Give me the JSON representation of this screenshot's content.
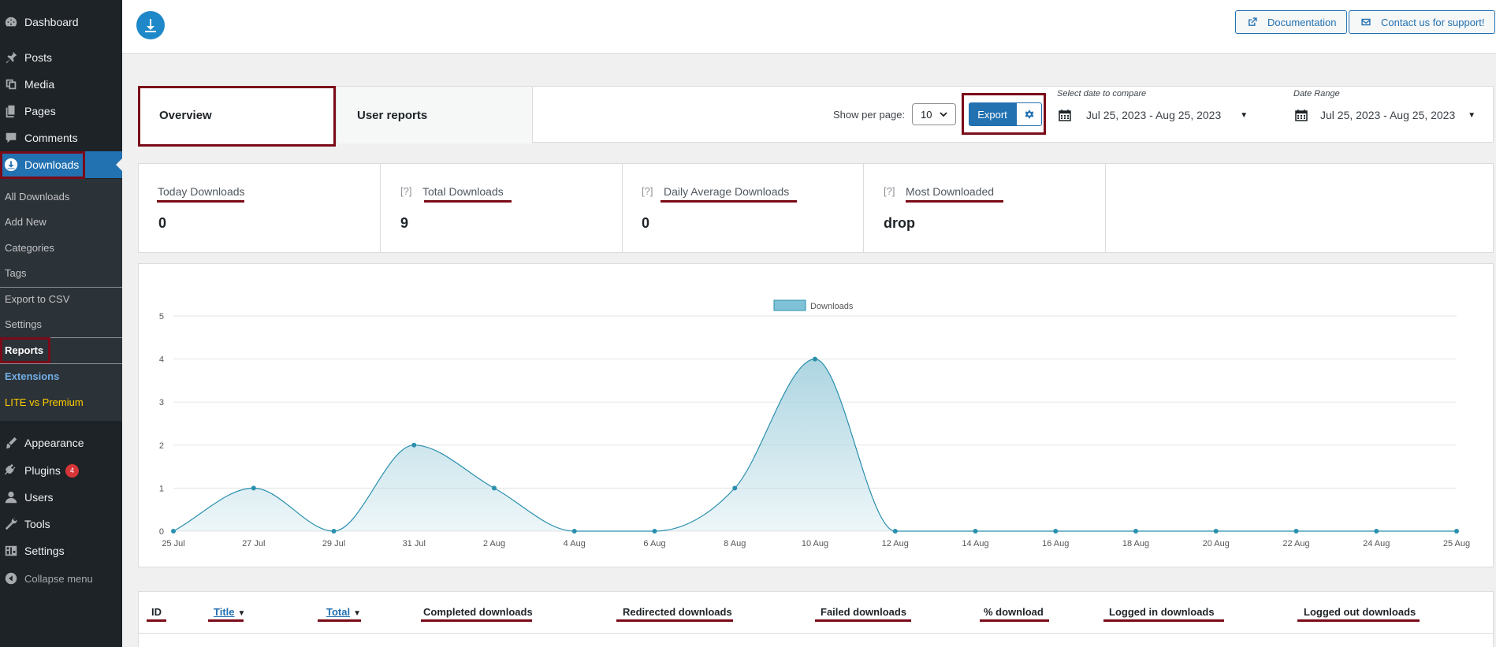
{
  "sidebar": {
    "dashboard": "Dashboard",
    "posts": "Posts",
    "media": "Media",
    "pages": "Pages",
    "comments": "Comments",
    "downloads": "Downloads",
    "submenu": {
      "all_downloads": "All Downloads",
      "add_new": "Add New",
      "categories": "Categories",
      "tags": "Tags",
      "export_csv": "Export to CSV",
      "settings": "Settings",
      "reports": "Reports",
      "extensions": "Extensions",
      "lite_vs_premium": "LITE vs Premium"
    },
    "appearance": "Appearance",
    "plugins": "Plugins",
    "plugins_badge": "4",
    "users": "Users",
    "tools": "Tools",
    "settings": "Settings",
    "collapse": "Collapse menu"
  },
  "header": {
    "documentation": "Documentation",
    "contact": "Contact us for support!"
  },
  "controls": {
    "tabs": [
      "Overview",
      "User reports"
    ],
    "show_per_page_label": "Show per page:",
    "per_page_value": "10",
    "export_label": "Export",
    "compare_caption": "Select date to compare",
    "compare_range": "Jul 25, 2023 - Aug 25, 2023",
    "date_range_caption": "Date Range",
    "date_range": "Jul 25, 2023 - Aug 25, 2023"
  },
  "stats": [
    {
      "title": "Today Downloads",
      "help": "",
      "value": "0"
    },
    {
      "title": "Total Downloads",
      "help": "[?]",
      "value": "9"
    },
    {
      "title": "Daily Average Downloads",
      "help": "[?]",
      "value": "0"
    },
    {
      "title": "Most Downloaded",
      "help": "[?]",
      "value": "drop"
    }
  ],
  "chart_data": {
    "type": "area",
    "title": "",
    "xlabel": "",
    "ylabel": "",
    "ylim": [
      0,
      5
    ],
    "yticks": [
      "0",
      "1",
      "2",
      "3",
      "4",
      "5"
    ],
    "legend": "top-center",
    "grid": true,
    "categories": [
      "25 Jul",
      "27 Jul",
      "29 Jul",
      "31 Jul",
      "2 Aug",
      "4 Aug",
      "6 Aug",
      "8 Aug",
      "10 Aug",
      "12 Aug",
      "14 Aug",
      "16 Aug",
      "18 Aug",
      "20 Aug",
      "22 Aug",
      "24 Aug",
      "25 Aug"
    ],
    "series": [
      {
        "name": "Downloads",
        "values": [
          0,
          1,
          0,
          2,
          1,
          0,
          0,
          1,
          4,
          0,
          0,
          0,
          0,
          0,
          0,
          0,
          0
        ],
        "color": "#2a90ad",
        "fill": "#a9d3e0"
      }
    ]
  },
  "table": {
    "columns": [
      {
        "label": "ID",
        "sortable": false
      },
      {
        "label": "Title",
        "sortable": true
      },
      {
        "label": "Total",
        "sortable": true
      },
      {
        "label": "Completed downloads",
        "sortable": false
      },
      {
        "label": "Redirected downloads",
        "sortable": false
      },
      {
        "label": "Failed downloads",
        "sortable": false
      },
      {
        "label": "% download",
        "sortable": false
      },
      {
        "label": "Logged in downloads",
        "sortable": false
      },
      {
        "label": "Logged out downloads",
        "sortable": false
      }
    ]
  },
  "colors": {
    "accent": "#2271b1",
    "sidebar_bg": "#1d2327",
    "highlight": "#7a0b18"
  }
}
